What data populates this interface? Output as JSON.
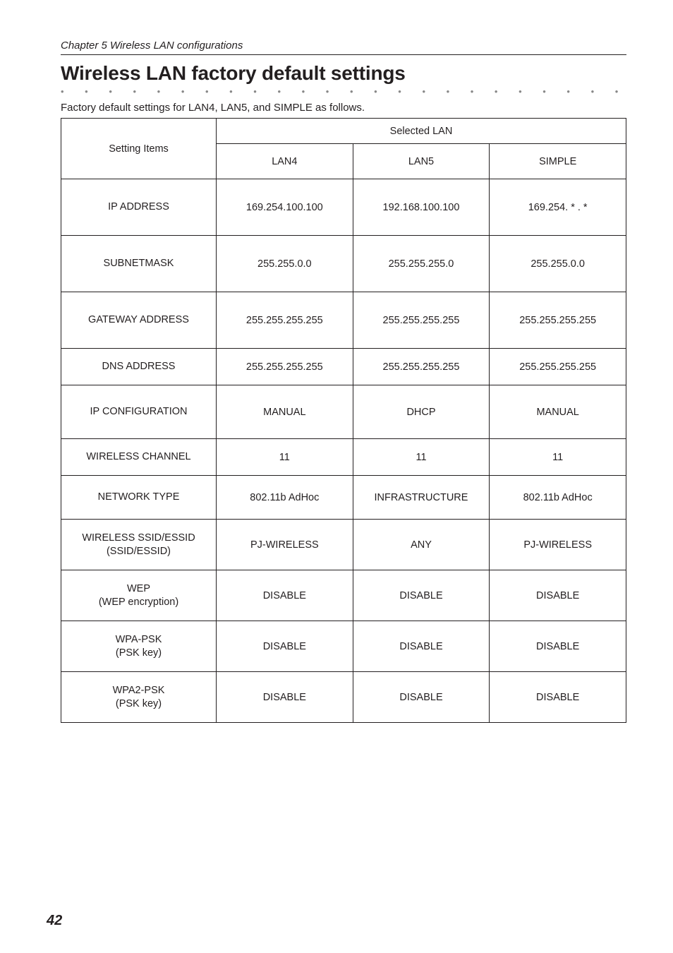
{
  "chapter": "Chapter 5 Wireless LAN configurations",
  "title": "Wireless LAN factory default settings",
  "intro": "Factory default settings for LAN4, LAN5, and SIMPLE as follows.",
  "header": {
    "setting_items": "Setting Items",
    "selected_lan": "Selected LAN",
    "cols": [
      "LAN4",
      "LAN5",
      "SIMPLE"
    ]
  },
  "rows": [
    {
      "label": "IP ADDRESS",
      "h": "h-a",
      "vals": [
        "169.254.100.100",
        "192.168.100.100",
        "169.254. * . *"
      ]
    },
    {
      "label": "SUBNETMASK",
      "h": "h-a",
      "vals": [
        "255.255.0.0",
        "255.255.255.0",
        "255.255.0.0"
      ]
    },
    {
      "label": "GATEWAY ADDRESS",
      "h": "h-a",
      "vals": [
        "255.255.255.255",
        "255.255.255.255",
        "255.255.255.255"
      ]
    },
    {
      "label": "DNS ADDRESS",
      "h": "h-b",
      "vals": [
        "255.255.255.255",
        "255.255.255.255",
        "255.255.255.255"
      ]
    },
    {
      "label": "IP CONFIGURATION",
      "h": "h-d",
      "vals": [
        "MANUAL",
        "DHCP",
        "MANUAL"
      ]
    },
    {
      "label": "WIRELESS CHANNEL",
      "h": "h-b",
      "vals": [
        "11",
        "11",
        "11"
      ]
    },
    {
      "label": "NETWORK TYPE",
      "h": "h-c",
      "vals": [
        "802.11b AdHoc",
        "INFRASTRUCTURE",
        "802.11b AdHoc"
      ]
    },
    {
      "label": "WIRELESS SSID/ESSID\n(SSID/ESSID)",
      "h": "h-e",
      "vals": [
        "PJ-WIRELESS",
        "ANY",
        "PJ-WIRELESS"
      ]
    },
    {
      "label": "WEP\n(WEP encryption)",
      "h": "h-e",
      "vals": [
        "DISABLE",
        "DISABLE",
        "DISABLE"
      ]
    },
    {
      "label": "WPA-PSK\n(PSK key)",
      "h": "h-e",
      "vals": [
        "DISABLE",
        "DISABLE",
        "DISABLE"
      ]
    },
    {
      "label": "WPA2-PSK\n(PSK key)",
      "h": "h-e",
      "vals": [
        "DISABLE",
        "DISABLE",
        "DISABLE"
      ]
    }
  ],
  "page_number": "42",
  "dot": "• • • • • • • • • • • • • • • • • • • • • • • • • • • • • • • • • • • • • • • • • • • • •"
}
